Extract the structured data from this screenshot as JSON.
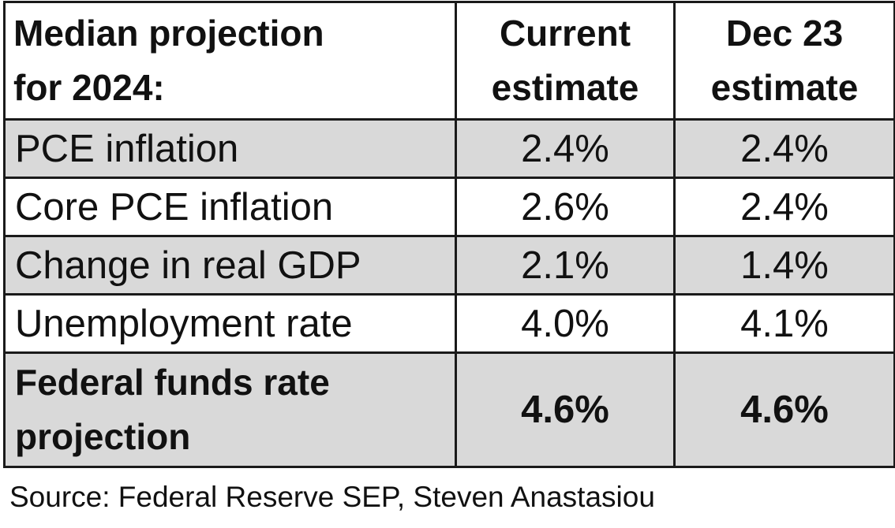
{
  "table": {
    "headers": {
      "label": [
        "Median projection",
        "for 2024:"
      ],
      "current": [
        "Current",
        "estimate"
      ],
      "dec23": [
        "Dec 23",
        "estimate"
      ]
    },
    "rows": [
      {
        "label": "PCE inflation",
        "current": "2.4%",
        "dec23": "2.4%"
      },
      {
        "label": "Core PCE inflation",
        "current": "2.6%",
        "dec23": "2.4%"
      },
      {
        "label": "Change in real GDP",
        "current": "2.1%",
        "dec23": "1.4%"
      },
      {
        "label": "Unemployment rate",
        "current": "4.0%",
        "dec23": "4.1%"
      }
    ],
    "highlight_row": {
      "label": [
        "Federal funds rate",
        "projection"
      ],
      "current": "4.6%",
      "dec23": "4.6%"
    },
    "shade_color": "#d9d9d9"
  },
  "source": "Source: Federal Reserve SEP, Steven Anastasiou"
}
